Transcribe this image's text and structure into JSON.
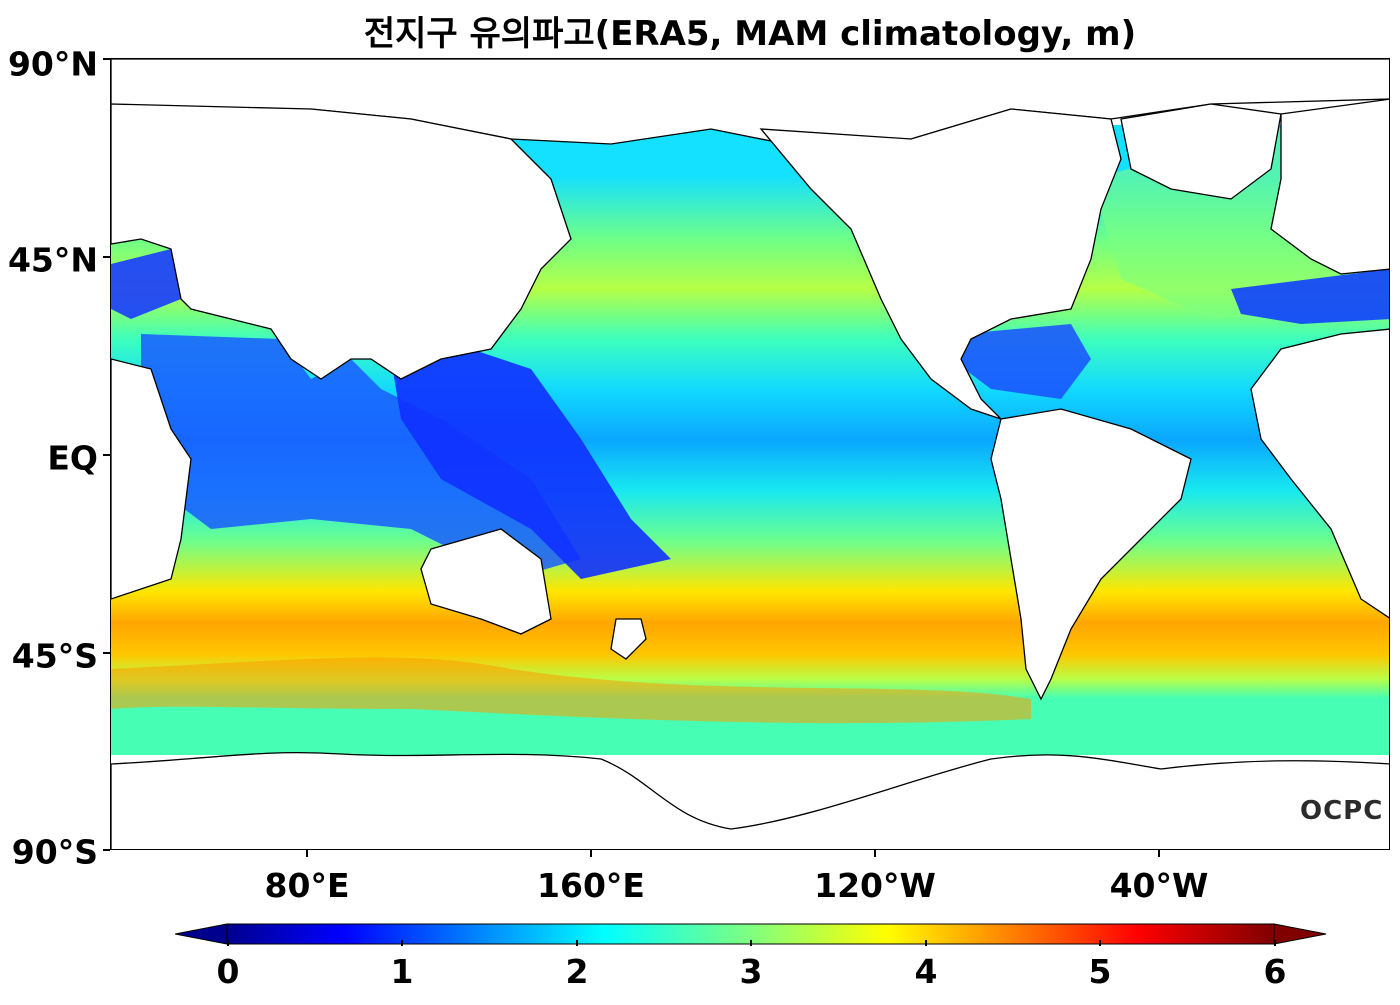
{
  "title": "전지구 유의파고(ERA5, MAM climatology, m)",
  "y_axis": {
    "labels": [
      "90°N",
      "45°N",
      "EQ",
      "45°S",
      "90°S"
    ]
  },
  "x_axis": {
    "labels": [
      "80°E",
      "160°E",
      "120°W",
      "40°W"
    ]
  },
  "colorbar": {
    "ticks": [
      "0",
      "1",
      "2",
      "3",
      "4",
      "5",
      "6"
    ],
    "range": [
      0,
      6
    ],
    "colormap": "jet",
    "extend": "both"
  },
  "logo": "OCPC",
  "chart_data": {
    "type": "heatmap",
    "title": "전지구 유의파고(ERA5, MAM climatology, m)",
    "projection": "PlateCarree, central longitude ~200°E (20°E to 380°E)",
    "lon_range": [
      25,
      385
    ],
    "lat_range": [
      -90,
      90
    ],
    "value_range": [
      0,
      6
    ],
    "units": "m",
    "approx_zonal_mean_significant_wave_height": [
      {
        "lat": 60,
        "value": 3.0
      },
      {
        "lat": 45,
        "value": 3.0
      },
      {
        "lat": 30,
        "value": 2.4
      },
      {
        "lat": 15,
        "value": 2.2
      },
      {
        "lat": 0,
        "value": 2.0
      },
      {
        "lat": -15,
        "value": 2.4
      },
      {
        "lat": -30,
        "value": 3.0
      },
      {
        "lat": -45,
        "value": 4.0
      },
      {
        "lat": -52,
        "value": 4.6
      },
      {
        "lat": -60,
        "value": 3.8
      }
    ]
  }
}
